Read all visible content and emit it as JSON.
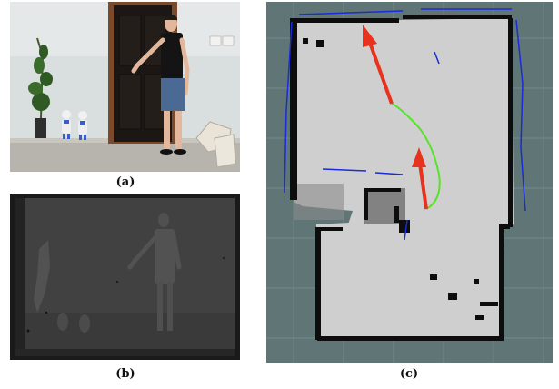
{
  "figure": {
    "captions": {
      "a": "(a)",
      "b": "(b)",
      "c": "(c)"
    },
    "panels": {
      "a": {
        "content": "rgb-photo",
        "subject": "person-pointing"
      },
      "b": {
        "content": "depth-image",
        "subject": "person-pointing"
      },
      "c": {
        "content": "occupancy-grid-map",
        "subject": "robot-path"
      }
    },
    "colors": {
      "map_background": "#5f7576",
      "map_free": "#cfcfcf",
      "map_wall": "#0d0d0d",
      "map_scan": "#1a2bd8",
      "arrow": "#e8321d",
      "path": "#59e22b",
      "depth_background": "#404040",
      "depth_frame": "#1a1a1a"
    }
  }
}
